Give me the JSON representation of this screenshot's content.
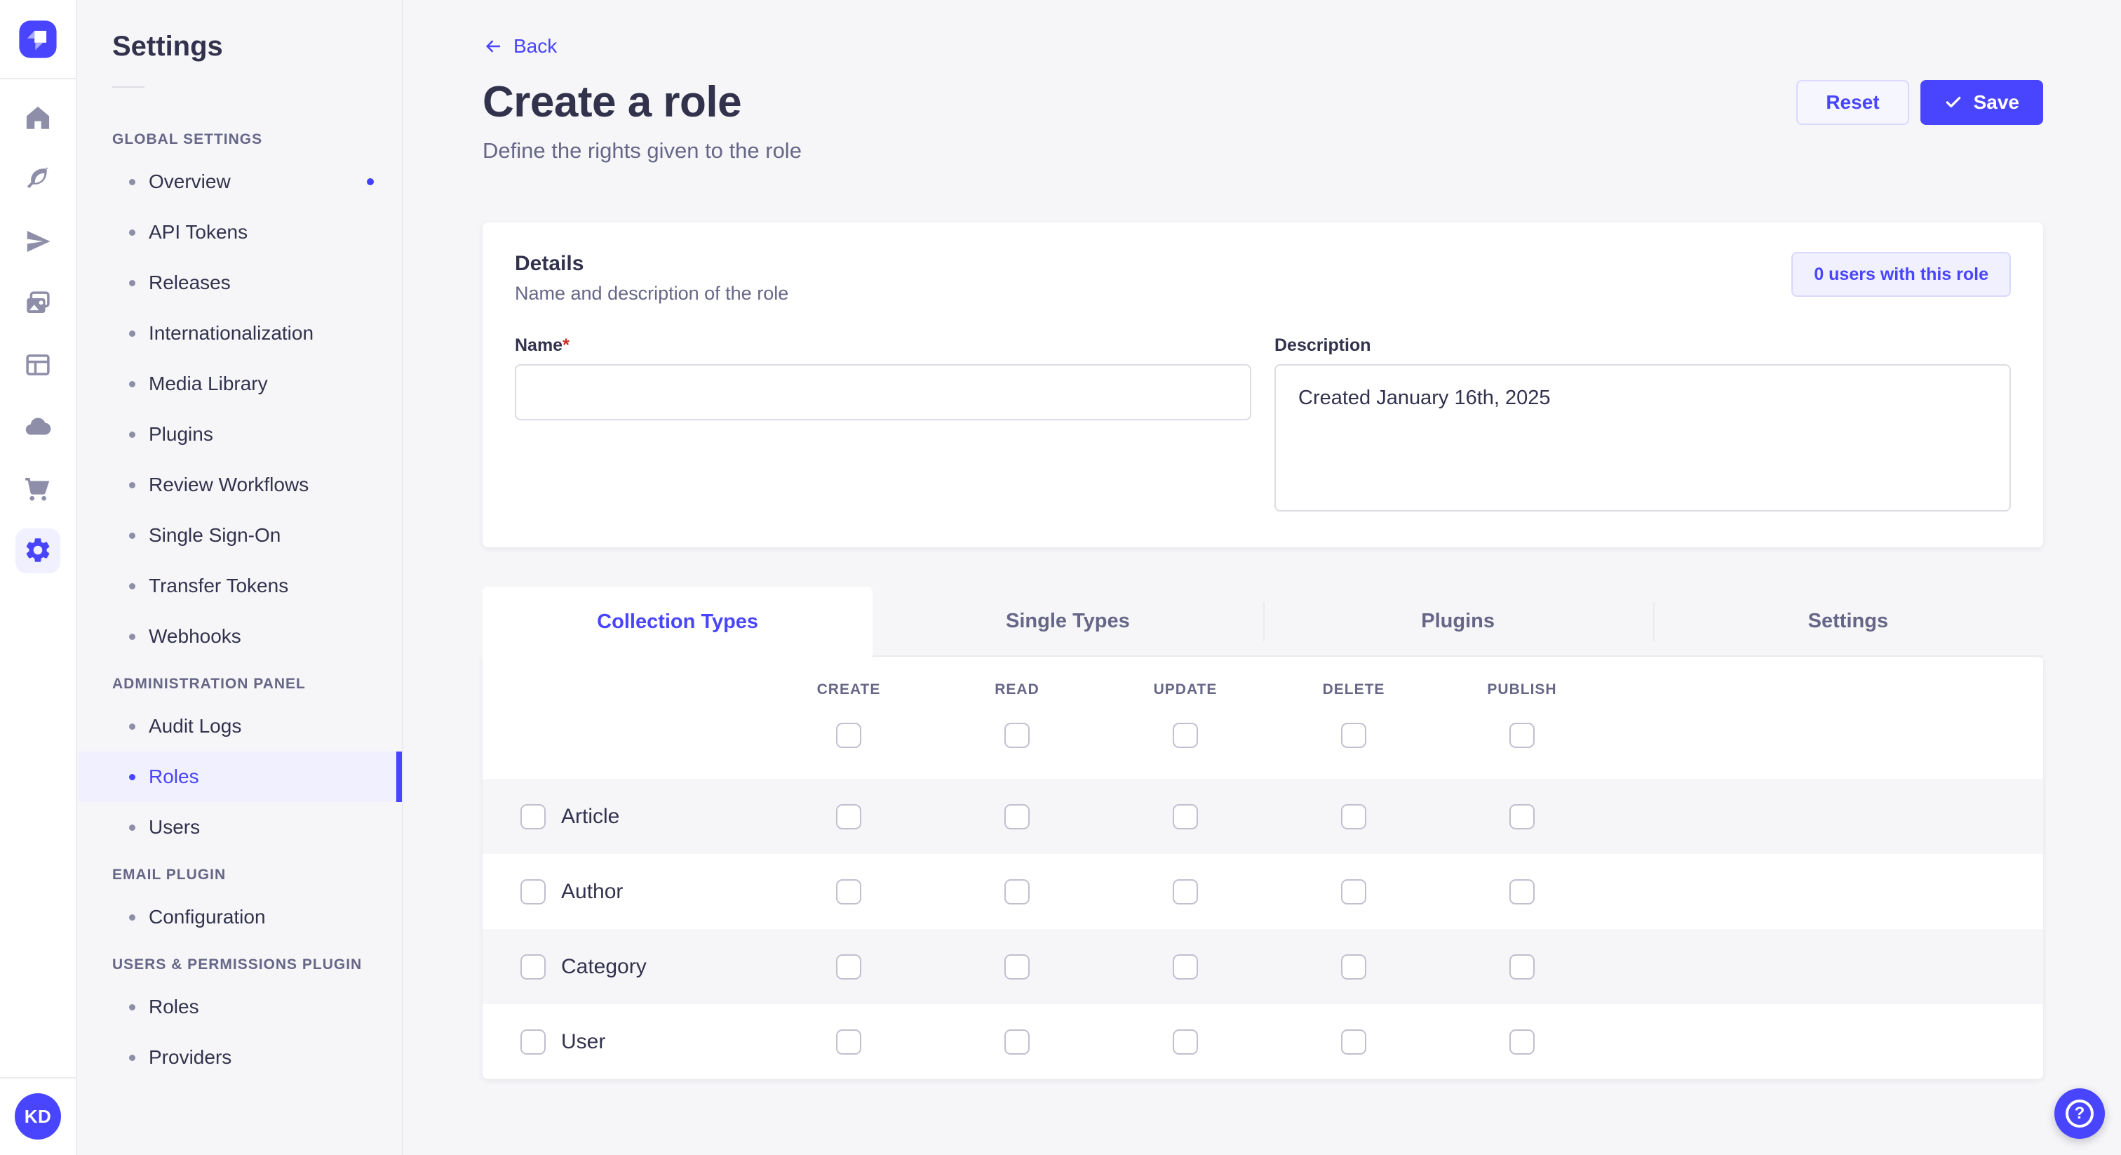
{
  "colors": {
    "accent": "#4945ff",
    "accent_light": "#f0f0ff",
    "accent_border": "#d9d8ff",
    "page_background": "#f6f6f9",
    "text": "#32324d",
    "muted": "#666687",
    "border": "#dcdce4",
    "required": "#d02b20"
  },
  "rail": {
    "logo_icon": "strapi-logo-icon",
    "items": [
      {
        "icon": "home-icon",
        "active": false
      },
      {
        "icon": "feather-icon",
        "active": false
      },
      {
        "icon": "paper-plane-icon",
        "active": false
      },
      {
        "icon": "media-library-icon",
        "active": false
      },
      {
        "icon": "layout-panel-icon",
        "active": false
      },
      {
        "icon": "cloud-icon",
        "active": false
      },
      {
        "icon": "cart-icon",
        "active": false
      },
      {
        "icon": "gear-icon",
        "active": true
      }
    ],
    "avatar_initials": "KD"
  },
  "subnav": {
    "title": "Settings",
    "sections": [
      {
        "label": "GLOBAL SETTINGS",
        "items": [
          {
            "label": "Overview",
            "active": false,
            "dot": true
          },
          {
            "label": "API Tokens",
            "active": false
          },
          {
            "label": "Releases",
            "active": false
          },
          {
            "label": "Internationalization",
            "active": false
          },
          {
            "label": "Media Library",
            "active": false
          },
          {
            "label": "Plugins",
            "active": false
          },
          {
            "label": "Review Workflows",
            "active": false
          },
          {
            "label": "Single Sign-On",
            "active": false
          },
          {
            "label": "Transfer Tokens",
            "active": false
          },
          {
            "label": "Webhooks",
            "active": false
          }
        ]
      },
      {
        "label": "ADMINISTRATION PANEL",
        "items": [
          {
            "label": "Audit Logs",
            "active": false
          },
          {
            "label": "Roles",
            "active": true
          },
          {
            "label": "Users",
            "active": false
          }
        ]
      },
      {
        "label": "EMAIL PLUGIN",
        "items": [
          {
            "label": "Configuration",
            "active": false
          }
        ]
      },
      {
        "label": "USERS & PERMISSIONS PLUGIN",
        "items": [
          {
            "label": "Roles",
            "active": false
          },
          {
            "label": "Providers",
            "active": false
          }
        ]
      }
    ]
  },
  "page": {
    "back_label": "Back",
    "title": "Create a role",
    "subtitle": "Define the rights given to the role"
  },
  "actions": {
    "reset_label": "Reset",
    "save_label": "Save"
  },
  "details": {
    "title": "Details",
    "subtitle": "Name and description of the role",
    "users_count_label": "0 users with this role",
    "fields": {
      "name": {
        "label": "Name",
        "required_mark": "*",
        "value": "",
        "placeholder": ""
      },
      "description": {
        "label": "Description",
        "value": "Created January 16th, 2025"
      }
    }
  },
  "permissions": {
    "tabs": [
      {
        "label": "Collection Types",
        "active": true
      },
      {
        "label": "Single Types",
        "active": false
      },
      {
        "label": "Plugins",
        "active": false
      },
      {
        "label": "Settings",
        "active": false
      }
    ],
    "columns": [
      "CREATE",
      "READ",
      "UPDATE",
      "DELETE",
      "PUBLISH"
    ],
    "select_all_checked": [
      false,
      false,
      false,
      false,
      false
    ],
    "rows": [
      {
        "label": "Article",
        "selected": false,
        "permissions": [
          false,
          false,
          false,
          false,
          false
        ]
      },
      {
        "label": "Author",
        "selected": false,
        "permissions": [
          false,
          false,
          false,
          false,
          false
        ]
      },
      {
        "label": "Category",
        "selected": false,
        "permissions": [
          false,
          false,
          false,
          false,
          false
        ]
      },
      {
        "label": "User",
        "selected": false,
        "permissions": [
          false,
          false,
          false,
          false,
          false
        ]
      }
    ]
  },
  "fab": {
    "icon": "help-icon"
  }
}
